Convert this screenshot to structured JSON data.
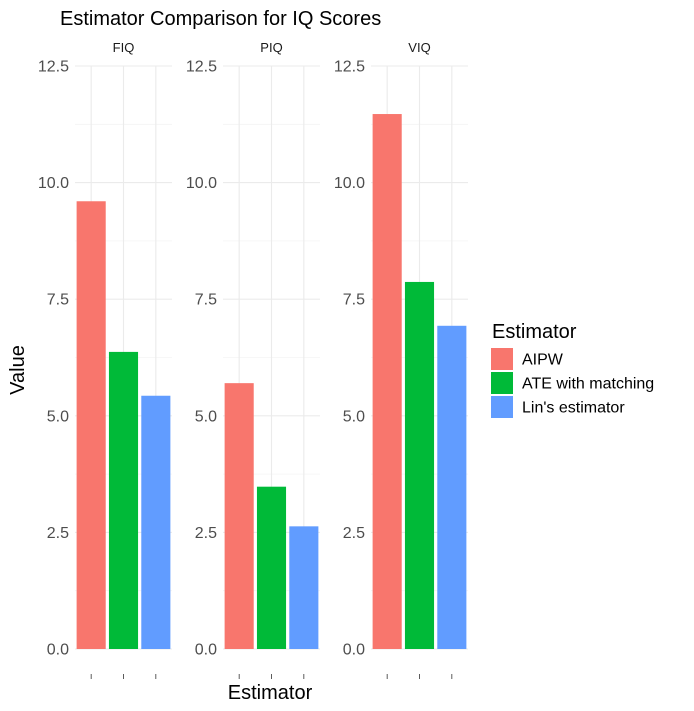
{
  "chart_data": {
    "type": "bar",
    "title": "Estimator Comparison for IQ Scores",
    "xlabel": "Estimator",
    "ylabel": "Value",
    "ylim": [
      0,
      12.5
    ],
    "yticks": [
      "0.0",
      "2.5",
      "5.0",
      "7.5",
      "10.0",
      "12.5"
    ],
    "grid": true,
    "legend": {
      "title": "Estimator",
      "position": "right",
      "entries": [
        "AIPW",
        "ATE with matching",
        "Lin's estimator"
      ]
    },
    "categories": [
      "AIPW",
      "ATE with matching",
      "Lin's estimator"
    ],
    "colors": [
      "#F8766D",
      "#00BA38",
      "#619CFF"
    ],
    "facets": [
      {
        "name": "FIQ",
        "values": [
          9.6,
          6.37,
          5.43
        ]
      },
      {
        "name": "PIQ",
        "values": [
          5.7,
          3.48,
          2.63
        ]
      },
      {
        "name": "VIQ",
        "values": [
          11.47,
          7.87,
          6.93
        ]
      }
    ]
  }
}
